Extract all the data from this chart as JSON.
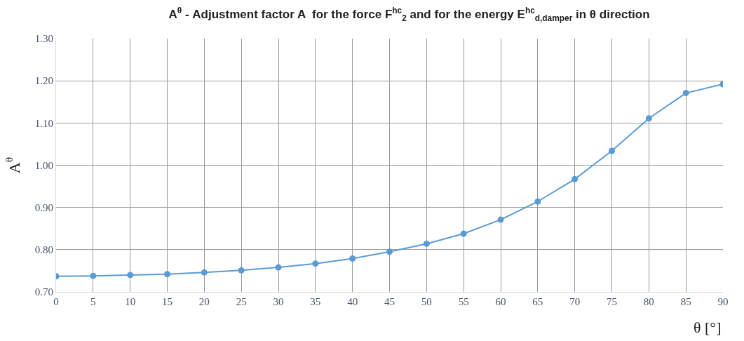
{
  "chart_data": {
    "type": "line",
    "title": "A$^{θ}$ - Adjustment factor A  for the force F$^{hc}$$_{2}$ and for the energy E$^{hc}$$_{d,damper}$ in θ direction",
    "xlabel": "θ [°]",
    "ylabel": "A$^{θ}$",
    "x": [
      0,
      5,
      10,
      15,
      20,
      25,
      30,
      35,
      40,
      45,
      50,
      55,
      60,
      65,
      70,
      75,
      80,
      85,
      90
    ],
    "series": [
      {
        "color": "#5b9bd5",
        "values": [
          0.737,
          0.738,
          0.74,
          0.742,
          0.746,
          0.751,
          0.758,
          0.767,
          0.779,
          0.795,
          0.814,
          0.838,
          0.871,
          0.914,
          0.967,
          1.034,
          1.111,
          1.171,
          1.192
        ]
      }
    ],
    "xlim": [
      0,
      90
    ],
    "xticks": [
      0,
      5,
      10,
      15,
      20,
      25,
      30,
      35,
      40,
      45,
      50,
      55,
      60,
      65,
      70,
      75,
      80,
      85,
      90
    ],
    "ylim": [
      0.7,
      1.3
    ],
    "yticks": [
      {
        "value": 0.7,
        "label": "0.70"
      },
      {
        "value": 0.8,
        "label": "0.80"
      },
      {
        "value": 0.9,
        "label": "0.90"
      },
      {
        "value": 1.0,
        "label": "1.00"
      },
      {
        "value": 1.1,
        "label": "1.10"
      },
      {
        "value": 1.2,
        "label": "1.20"
      },
      {
        "value": 1.3,
        "label": "1.30"
      }
    ],
    "grid": true,
    "marker": "circle",
    "line_style": "solid"
  }
}
